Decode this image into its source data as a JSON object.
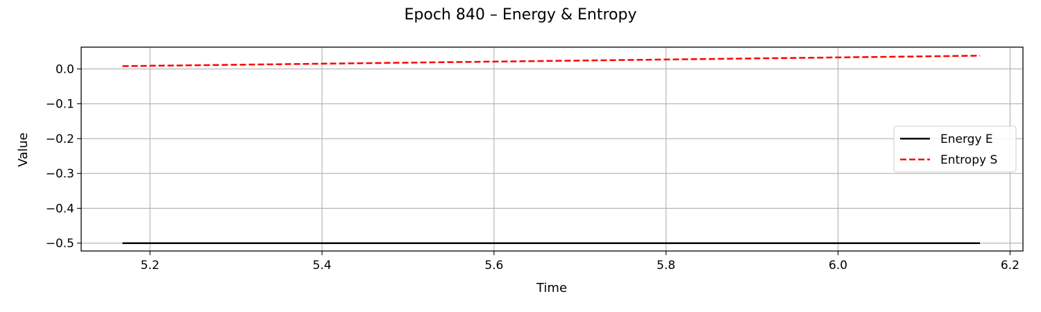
{
  "chart_data": {
    "type": "line",
    "title": "Epoch 840 – Energy & Entropy",
    "xlabel": "Time",
    "ylabel": "Value",
    "xlim": [
      5.12,
      6.215
    ],
    "ylim": [
      -0.5225,
      0.0625
    ],
    "xticks": [
      5.2,
      5.4,
      5.6,
      5.8,
      6.0,
      6.2
    ],
    "xtick_labels": [
      "5.2",
      "5.4",
      "5.6",
      "5.8",
      "6.0",
      "6.2"
    ],
    "yticks": [
      0.0,
      -0.1,
      -0.2,
      -0.3,
      -0.4,
      -0.5
    ],
    "ytick_labels": [
      "0.0",
      "−0.1",
      "−0.2",
      "−0.3",
      "−0.4",
      "−0.5"
    ],
    "grid": true,
    "legend_position": "center-right",
    "series": [
      {
        "name": "Energy E",
        "color": "#000000",
        "style": "solid",
        "x": [
          5.168,
          6.165
        ],
        "y": [
          -0.5,
          -0.5
        ]
      },
      {
        "name": "Entropy S",
        "color": "#ff0000",
        "style": "dashed",
        "x": [
          5.168,
          6.165
        ],
        "y": [
          0.008,
          0.038
        ]
      }
    ]
  }
}
